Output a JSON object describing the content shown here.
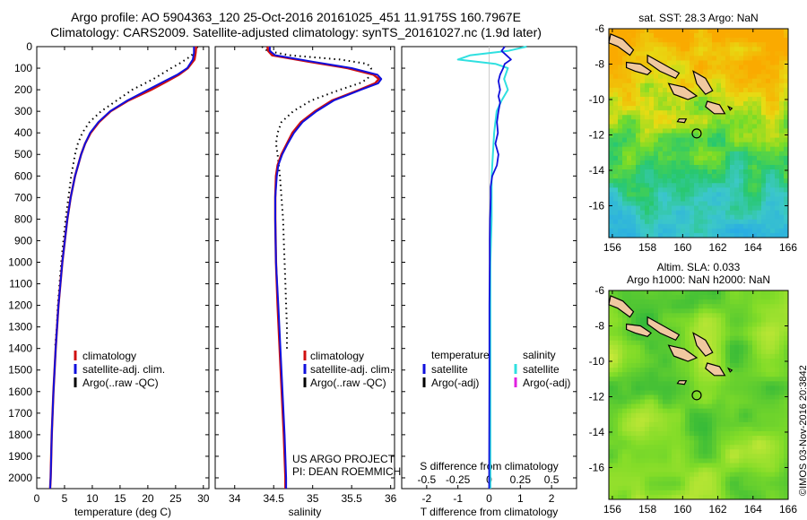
{
  "header": {
    "line1": "Argo profile: AO 5904363_120 25-Oct-2016 20161025_451 11.9175S 160.7967E",
    "line2": "Climatology: CARS2009. Satellite-adjusted climatology: synTS_20161027.nc (1.9d later)"
  },
  "credit": "©IMOS 03-Nov-2016 20:3842",
  "colors": {
    "climatology": "#d01010",
    "satellite": "#1010dd",
    "argo": "#000000",
    "satellite_s": "#30e0e0",
    "argo_s": "#e020e0",
    "land": "#f0c8a0"
  },
  "chart_data": [
    {
      "type": "line",
      "xlabel": "temperature (deg C)",
      "ylabel": "",
      "xlim": [
        0,
        31
      ],
      "ylim": [
        2050,
        0
      ],
      "xticks": [
        0,
        5,
        10,
        15,
        20,
        25,
        30
      ],
      "yticks": [
        0,
        100,
        200,
        300,
        400,
        500,
        600,
        700,
        800,
        900,
        1000,
        1100,
        1200,
        1300,
        1400,
        1500,
        1600,
        1700,
        1800,
        1900,
        2000
      ],
      "legend": [
        "climatology",
        "satellite-adj. clim.",
        "Argo(..raw -QC)"
      ],
      "legend_loc": "lower-center",
      "series": [
        {
          "name": "climatology",
          "style": "solid",
          "color": "climatology",
          "depth": [
            0,
            30,
            60,
            100,
            130,
            160,
            200,
            250,
            300,
            350,
            400,
            450,
            500,
            600,
            700,
            800,
            1000,
            1200,
            1400,
            1600,
            1800,
            2000,
            2050
          ],
          "values": [
            28.7,
            28.6,
            28.4,
            27.2,
            25.6,
            23.5,
            20.6,
            16.5,
            13.3,
            11.2,
            9.7,
            8.7,
            8.0,
            6.9,
            6.1,
            5.5,
            4.6,
            3.9,
            3.4,
            3.0,
            2.7,
            2.5,
            2.4
          ]
        },
        {
          "name": "satellite-adj. clim.",
          "style": "solid",
          "color": "satellite",
          "depth": [
            0,
            30,
            60,
            100,
            130,
            160,
            200,
            250,
            300,
            350,
            400,
            450,
            500,
            600,
            700,
            800,
            1000,
            1200,
            1400,
            1600,
            1800,
            2000,
            2050
          ],
          "values": [
            28.3,
            28.3,
            28.1,
            27.1,
            25.3,
            23.0,
            20.0,
            16.3,
            13.2,
            11.1,
            9.6,
            8.7,
            8.0,
            6.9,
            6.1,
            5.5,
            4.6,
            3.9,
            3.4,
            3.0,
            2.7,
            2.5,
            2.4
          ]
        },
        {
          "name": "Argo(..raw -QC)",
          "style": "dotted",
          "color": "argo",
          "depth": [
            0,
            20,
            50,
            80,
            100,
            150,
            200,
            250,
            300,
            350,
            400,
            450,
            500,
            600,
            700,
            800,
            900,
            1000,
            1100,
            1200,
            1300,
            1400
          ],
          "values": [
            28.9,
            28.8,
            27.4,
            25.6,
            24.2,
            21.0,
            17.2,
            14.4,
            11.6,
            9.5,
            8.2,
            7.4,
            6.9,
            6.2,
            5.7,
            5.2,
            4.8,
            4.4,
            4.1,
            3.8,
            3.6,
            3.3
          ]
        }
      ]
    },
    {
      "type": "line",
      "xlabel": "salinity",
      "ylabel": "",
      "xlim": [
        33.75,
        36.05
      ],
      "ylim": [
        2050,
        0
      ],
      "xticks": [
        34,
        34.5,
        35,
        35.5,
        36
      ],
      "xticklabels": [
        "34",
        "34.5",
        "35",
        "35.5",
        "36"
      ],
      "legend": [
        "climatology",
        "satellite-adj. clim.",
        "Argo(..raw -QC)"
      ],
      "legend_loc": "lower-center",
      "annotation": [
        "US ARGO PROJECT",
        "PI: DEAN ROEMMICH"
      ],
      "series": [
        {
          "name": "climatology",
          "style": "solid",
          "color": "climatology",
          "depth": [
            0,
            20,
            40,
            70,
            100,
            130,
            150,
            170,
            200,
            250,
            300,
            350,
            400,
            450,
            500,
            550,
            600,
            700,
            800,
            1000,
            1200,
            1500,
            1800,
            2000,
            2050
          ],
          "values": [
            34.42,
            34.43,
            34.48,
            34.95,
            35.45,
            35.78,
            35.85,
            35.8,
            35.6,
            35.25,
            35.03,
            34.85,
            34.74,
            34.67,
            34.6,
            34.55,
            34.53,
            34.52,
            34.52,
            34.53,
            34.55,
            34.59,
            34.63,
            34.65,
            34.65
          ]
        },
        {
          "name": "satellite-adj. clim.",
          "style": "solid",
          "color": "satellite",
          "depth": [
            0,
            20,
            40,
            70,
            100,
            130,
            150,
            170,
            200,
            250,
            300,
            350,
            400,
            450,
            500,
            550,
            600,
            700,
            800,
            1000,
            1200,
            1500,
            1800,
            2000,
            2050
          ],
          "values": [
            34.45,
            34.45,
            34.52,
            35.0,
            35.5,
            35.83,
            35.88,
            35.84,
            35.62,
            35.27,
            35.05,
            34.87,
            34.76,
            34.68,
            34.61,
            34.56,
            34.54,
            34.52,
            34.52,
            34.53,
            34.56,
            34.6,
            34.64,
            34.66,
            34.66
          ]
        },
        {
          "name": "Argo(..raw -QC)",
          "style": "dotted",
          "color": "argo",
          "depth": [
            0,
            20,
            40,
            60,
            80,
            100,
            130,
            150,
            170,
            200,
            250,
            300,
            350,
            400,
            450,
            500,
            600,
            700,
            800,
            900,
            1000,
            1100,
            1200,
            1300,
            1400
          ],
          "values": [
            34.35,
            34.42,
            34.7,
            35.35,
            35.7,
            35.75,
            35.74,
            35.7,
            35.6,
            35.35,
            34.98,
            34.75,
            34.6,
            34.55,
            34.53,
            34.55,
            34.58,
            34.6,
            34.62,
            34.63,
            34.64,
            34.65,
            34.66,
            34.67,
            34.67
          ]
        }
      ]
    },
    {
      "type": "line",
      "xlabel": "T difference from climatology",
      "xlabel_top": "S difference from climatology",
      "xlim": [
        -2.8,
        2.8
      ],
      "ylim": [
        2050,
        0
      ],
      "xticks": [
        -2,
        -1,
        0,
        1,
        2
      ],
      "xticks_top": [
        -0.5,
        -0.25,
        0,
        0.25,
        0.5
      ],
      "xticklabels_top": [
        "-0.5",
        "-0.25",
        "0",
        "0.25",
        "0.5"
      ],
      "legend_left": {
        "title": "temperature",
        "items": [
          "satellite",
          "Argo(-adj)"
        ]
      },
      "legend_right": {
        "title": "salinity",
        "items": [
          "satellite",
          "Argo(-adj)"
        ]
      },
      "series": [
        {
          "name": "salinity satellite",
          "color": "satellite_s",
          "depth": [
            0,
            20,
            40,
            60,
            80,
            100,
            150,
            200,
            250,
            300,
            400,
            500,
            600,
            800,
            1000,
            1500,
            2000,
            2050
          ],
          "values": [
            0.3,
            0.15,
            -0.15,
            -0.25,
            0.05,
            0.15,
            0.12,
            0.15,
            0.1,
            0.06,
            0.04,
            0.03,
            0.02,
            0.02,
            0.01,
            0.01,
            0.01,
            0.01
          ]
        },
        {
          "name": "temperature satellite",
          "color": "satellite",
          "depth": [
            0,
            20,
            40,
            60,
            80,
            100,
            130,
            160,
            200,
            230,
            260,
            300,
            350,
            400,
            450,
            500,
            550,
            600,
            650,
            700,
            750,
            800,
            900,
            1000,
            1200,
            1500,
            2000,
            2050
          ],
          "values": [
            0.5,
            0.4,
            0.55,
            0.7,
            0.5,
            0.45,
            0.35,
            0.3,
            0.35,
            0.3,
            0.35,
            0.3,
            0.25,
            0.28,
            0.2,
            0.3,
            0.25,
            0.1,
            0.05,
            0.05,
            0.04,
            0.03,
            0.02,
            0.02,
            0.01,
            0.01,
            0.0,
            0.0
          ]
        }
      ]
    }
  ],
  "maps": [
    {
      "title": "sat. SST: 28.3 Argo: NaN",
      "xticks": [
        "156",
        "158",
        "160",
        "162",
        "164",
        "166"
      ],
      "yticks": [
        "-6",
        "-8",
        "-10",
        "-12",
        "-14",
        "-16"
      ],
      "field": "sst"
    },
    {
      "title_line1": "Altim. SLA: 0.033",
      "title_line2": "Argo h1000: NaN h2000: NaN",
      "xticks": [
        "156",
        "158",
        "160",
        "162",
        "164",
        "166"
      ],
      "yticks": [
        "-6",
        "-8",
        "-10",
        "-12",
        "-14",
        "-16"
      ],
      "field": "sla"
    }
  ],
  "map_extent": {
    "lon": [
      155.8,
      166
    ],
    "lat": [
      -17.8,
      -6
    ]
  },
  "float_position": {
    "lon": 160.7967,
    "lat": -11.9175
  }
}
